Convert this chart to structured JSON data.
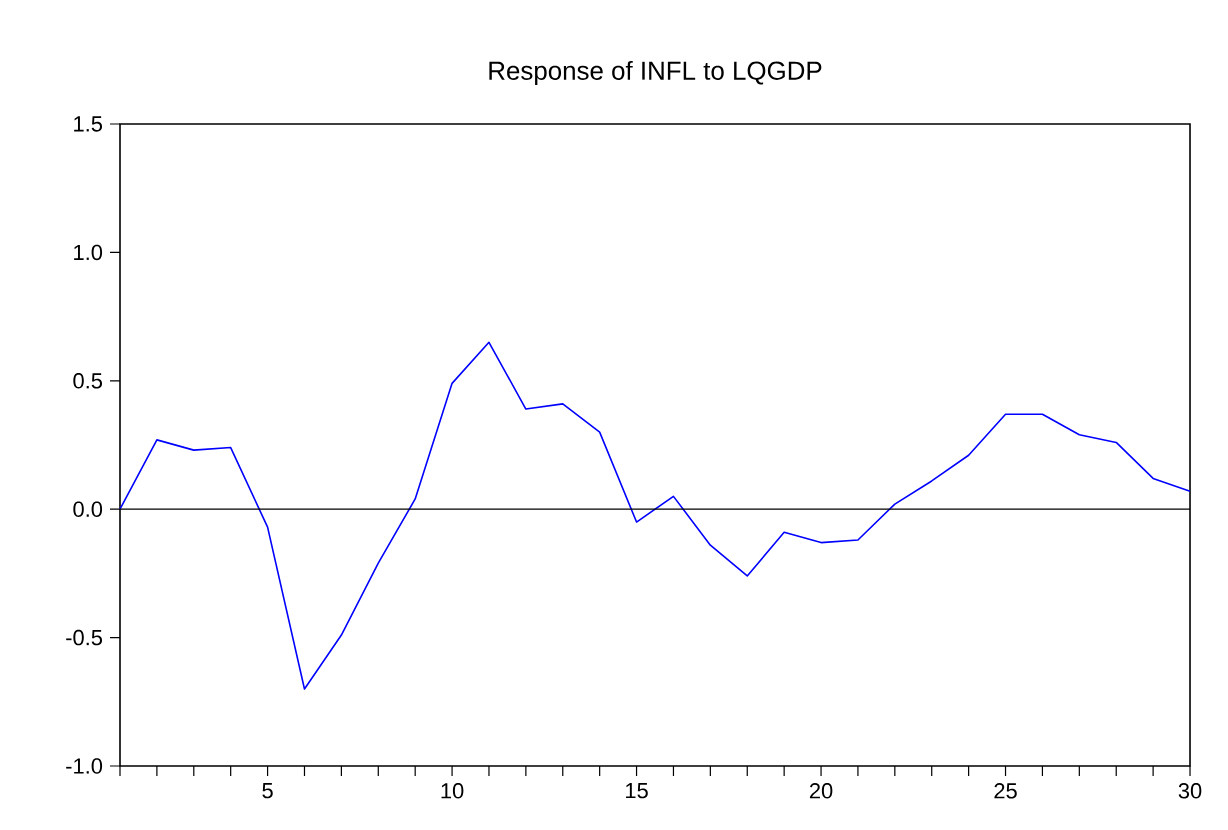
{
  "chart_data": {
    "type": "line",
    "title": "Response of INFL to LQGDP",
    "x": [
      1,
      2,
      3,
      4,
      5,
      6,
      7,
      8,
      9,
      10,
      11,
      12,
      13,
      14,
      15,
      16,
      17,
      18,
      19,
      20,
      21,
      22,
      23,
      24,
      25,
      26,
      27,
      28,
      29,
      30
    ],
    "series": [
      {
        "color": "#0000ff",
        "values": [
          0,
          0.27,
          0.23,
          0.24,
          -0.07,
          -0.7,
          -0.49,
          -0.21,
          0.04,
          0.49,
          0.65,
          0.39,
          0.41,
          0.3,
          -0.05,
          0.05,
          -0.14,
          -0.26,
          -0.09,
          -0.13,
          -0.12,
          0.02,
          0.11,
          0.21,
          0.37,
          0.37,
          0.29,
          0.26,
          0.12,
          0.07
        ]
      }
    ],
    "xlim": [
      1,
      30
    ],
    "xticks": [
      {
        "value": 1,
        "label": null
      },
      {
        "value": 2,
        "label": null
      },
      {
        "value": 3,
        "label": null
      },
      {
        "value": 4,
        "label": null
      },
      5,
      {
        "value": 6,
        "label": null
      },
      {
        "value": 7,
        "label": null
      },
      {
        "value": 8,
        "label": null
      },
      {
        "value": 9,
        "label": null
      },
      10,
      {
        "value": 11,
        "label": null
      },
      {
        "value": 12,
        "label": null
      },
      {
        "value": 13,
        "label": null
      },
      {
        "value": 14,
        "label": null
      },
      15,
      {
        "value": 16,
        "label": null
      },
      {
        "value": 17,
        "label": null
      },
      {
        "value": 18,
        "label": null
      },
      {
        "value": 19,
        "label": null
      },
      20,
      {
        "value": 21,
        "label": null
      },
      {
        "value": 22,
        "label": null
      },
      {
        "value": 23,
        "label": null
      },
      {
        "value": 24,
        "label": null
      },
      25,
      {
        "value": 26,
        "label": null
      },
      {
        "value": 27,
        "label": null
      },
      {
        "value": 28,
        "label": null
      },
      {
        "value": 29,
        "label": null
      },
      30
    ],
    "ylim": [
      -1.0,
      1.5
    ],
    "yticks": [
      {
        "value": -1.0,
        "label": "-1.0"
      },
      {
        "value": -0.5,
        "label": "-0.5"
      },
      {
        "value": 0.0,
        "label": "0.0"
      },
      {
        "value": 0.5,
        "label": "0.5"
      },
      {
        "value": 1.0,
        "label": "1.0"
      },
      {
        "value": 1.5,
        "label": "1.5"
      }
    ],
    "ref_lines": [
      {
        "axis": "y",
        "value": 0,
        "color": "#000000"
      }
    ],
    "grid": false,
    "marker": "none",
    "line_style": "solid"
  }
}
